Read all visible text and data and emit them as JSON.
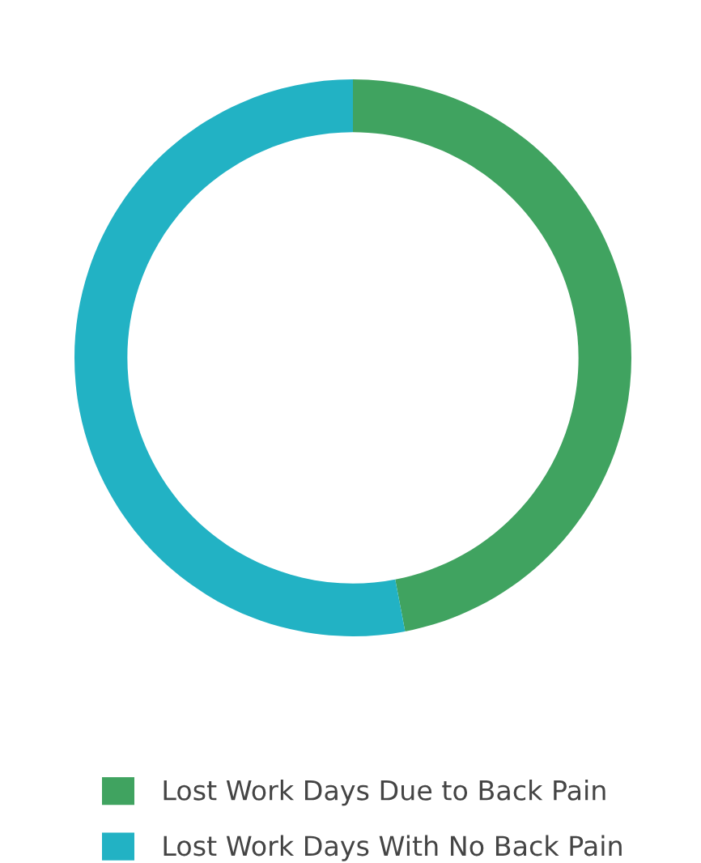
{
  "chart_data": {
    "type": "donut",
    "categories": [
      "Lost Work Days Due to Back Pain",
      "Lost Work Days With No Back Pain"
    ],
    "values": [
      47,
      53
    ],
    "colors": [
      "#40a360",
      "#22b2c4"
    ],
    "legend": "bottom"
  }
}
